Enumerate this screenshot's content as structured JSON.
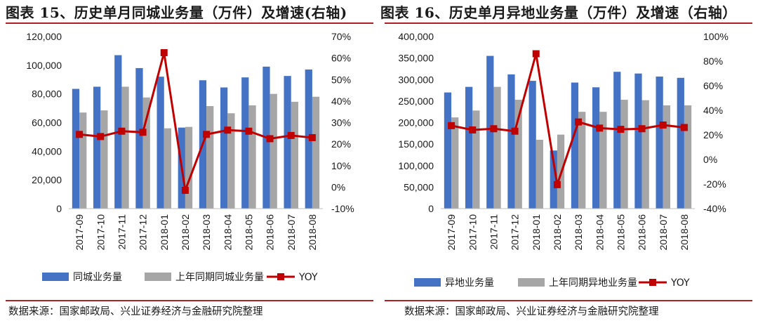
{
  "chart_data": [
    {
      "type": "bar",
      "title": "图表 15、历史单月同城业务量（万件）及增速(右轴)",
      "source": "数据来源：国家邮政局、兴业证券经济与金融研究院整理",
      "categories": [
        "2017-09",
        "2017-10",
        "2017-11",
        "2017-12",
        "2018-01",
        "2018-02",
        "2018-03",
        "2018-04",
        "2018-05",
        "2018-06",
        "2018-07",
        "2018-08"
      ],
      "y_ticks": [
        "0",
        "20,000",
        "40,000",
        "60,000",
        "80,000",
        "100,000",
        "120,000"
      ],
      "y2_ticks": [
        "-10%",
        "0%",
        "10%",
        "20%",
        "30%",
        "40%",
        "50%",
        "60%",
        "70%"
      ],
      "ylim": [
        0,
        120000
      ],
      "y2lim": [
        -10,
        70
      ],
      "series": [
        {
          "name": "同城业务量",
          "kind": "bar",
          "color": "#4472c4",
          "values": [
            83500,
            85000,
            107000,
            98000,
            92000,
            56500,
            89500,
            84500,
            91500,
            99000,
            92500,
            97000
          ]
        },
        {
          "name": "上年同期同城业务量",
          "kind": "bar",
          "color": "#a6a6a6",
          "values": [
            67000,
            68500,
            85000,
            77500,
            56000,
            57000,
            71500,
            66500,
            72000,
            80000,
            74500,
            78000
          ]
        },
        {
          "name": "YOY",
          "kind": "line",
          "axis": "right",
          "color": "#c00000",
          "values": [
            24.5,
            23.5,
            26,
            25.5,
            62.5,
            -1.5,
            24.5,
            26.5,
            26,
            22.5,
            24,
            23
          ]
        }
      ]
    },
    {
      "type": "bar",
      "title": "图表 16、历史单月异地业务量（万件）及增速（右轴）",
      "source": "数据来源：国家邮政局、兴业证券经济与金融研究院整理",
      "categories": [
        "2017-09",
        "2017-10",
        "2017-11",
        "2017-12",
        "2018-01",
        "2018-02",
        "2018-03",
        "2018-04",
        "2018-05",
        "2018-06",
        "2018-07",
        "2018-08"
      ],
      "y_ticks": [
        "0",
        "50,000",
        "100,000",
        "150,000",
        "200,000",
        "250,000",
        "300,000",
        "350,000",
        "400,000"
      ],
      "y2_ticks": [
        "-40%",
        "-20%",
        "0%",
        "20%",
        "40%",
        "60%",
        "80%",
        "100%"
      ],
      "ylim": [
        0,
        400000
      ],
      "y2lim": [
        -40,
        100
      ],
      "series": [
        {
          "name": "异地业务量",
          "kind": "bar",
          "color": "#4472c4",
          "values": [
            270000,
            283000,
            355000,
            312000,
            297000,
            135000,
            293000,
            282000,
            318000,
            314000,
            307000,
            304000
          ]
        },
        {
          "name": "上年同期异地业务量",
          "kind": "bar",
          "color": "#a6a6a6",
          "values": [
            212000,
            228000,
            283000,
            253000,
            160000,
            172000,
            225000,
            225000,
            253000,
            252000,
            240000,
            240000
          ]
        },
        {
          "name": "YOY",
          "kind": "line",
          "axis": "right",
          "color": "#c00000",
          "values": [
            27.5,
            24,
            25,
            23,
            86,
            -20.5,
            30.5,
            25.5,
            24.5,
            25,
            28,
            26
          ]
        }
      ]
    }
  ]
}
